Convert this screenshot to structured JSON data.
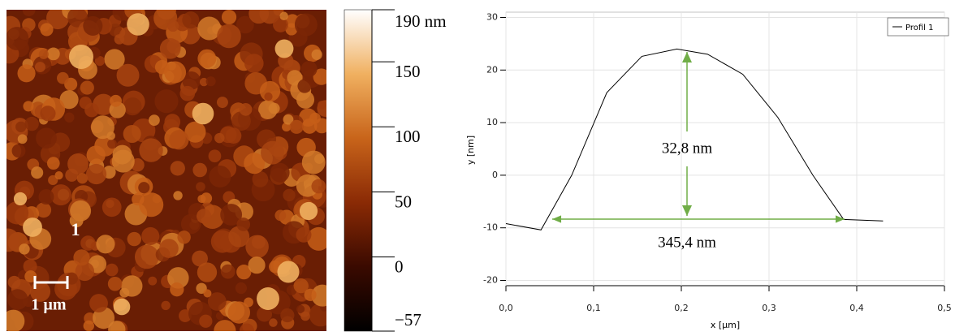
{
  "afm_image": {
    "profile_marker": "1",
    "scale_bar_label": "1 µm"
  },
  "chart_data": [
    {
      "type": "colorbar",
      "ylim": [
        -57,
        190
      ],
      "yticks": [
        {
          "value": 190,
          "label": "190 nm"
        },
        150,
        100,
        50,
        0,
        {
          "value": -57,
          "label": "−57"
        }
      ],
      "colors": [
        "#000000",
        "#3a0a00",
        "#8a2a05",
        "#c8641a",
        "#f0b060",
        "#ffffff"
      ]
    },
    {
      "type": "line",
      "x": [
        0,
        0.04,
        0.075,
        0.115,
        0.155,
        0.195,
        0.23,
        0.27,
        0.31,
        0.35,
        0.385,
        0.43
      ],
      "series": [
        {
          "name": "Profil 1",
          "color": "#000000",
          "values": [
            -9.2,
            -10.4,
            0,
            15.7,
            22.6,
            24,
            23,
            19.2,
            11,
            0,
            -8.4,
            -8.7
          ]
        }
      ],
      "xlabel": "x [µm]",
      "ylabel": "y [nm]",
      "xlim": [
        0,
        0.5
      ],
      "ylim": [
        -21,
        31
      ],
      "xticks": [
        {
          "value": 0,
          "label": "0,0"
        },
        {
          "value": 0.1,
          "label": "0,1"
        },
        {
          "value": 0.2,
          "label": "0,2"
        },
        {
          "value": 0.3,
          "label": "0,3"
        },
        {
          "value": 0.4,
          "label": "0,4"
        },
        {
          "value": 0.5,
          "label": "0,5"
        }
      ],
      "yticks": [
        -20,
        -10,
        0,
        10,
        20,
        30
      ],
      "grid": true,
      "legend": "upper right",
      "arrow_color": "#70ad47",
      "annotations": [
        {
          "text": "32,8 nm"
        },
        {
          "text": "345,4 nm"
        }
      ]
    }
  ]
}
